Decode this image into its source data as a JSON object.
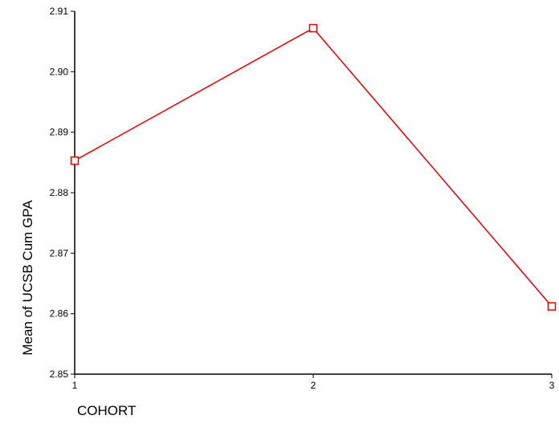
{
  "chart_data": {
    "type": "line",
    "title": "",
    "xlabel": "COHORT",
    "ylabel": "Mean of UCSB Cum GPA",
    "categories": [
      "1",
      "2",
      "3"
    ],
    "x": [
      1,
      2,
      3
    ],
    "series": [
      {
        "values": [
          2.8853,
          2.9072,
          2.8612
        ],
        "color": "#e00000",
        "marker": "open-square"
      }
    ],
    "xlim": [
      1,
      3
    ],
    "ylim": [
      2.85,
      2.91
    ],
    "yticks": [
      "2.85",
      "2.86",
      "2.87",
      "2.88",
      "2.89",
      "2.90",
      "2.91"
    ],
    "grid": false,
    "legend": "none"
  }
}
